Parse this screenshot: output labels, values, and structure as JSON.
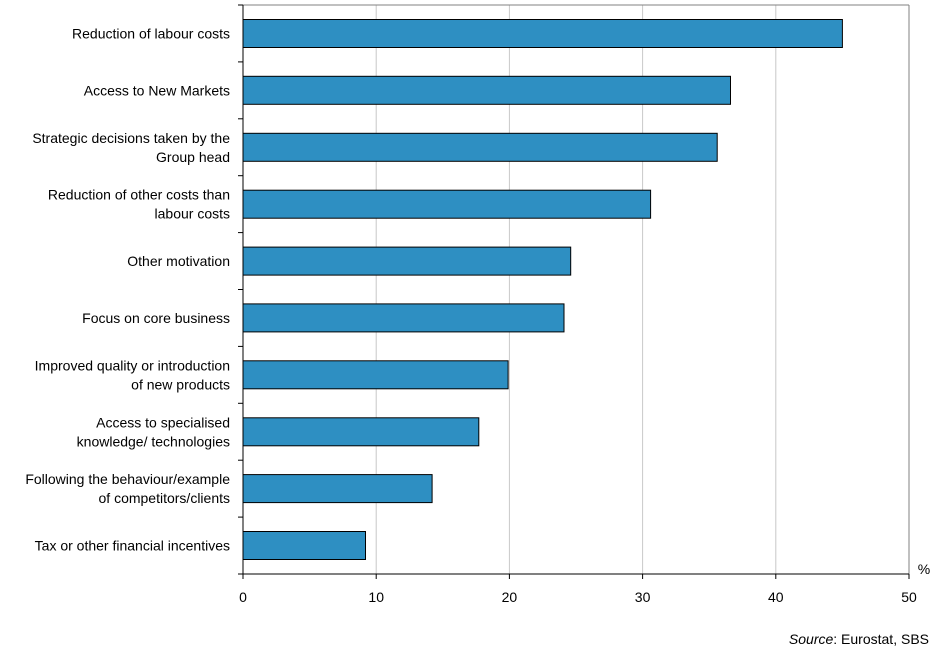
{
  "chart_data": {
    "type": "bar",
    "orientation": "horizontal",
    "categories": [
      [
        "Reduction of labour costs"
      ],
      [
        "Access to New Markets"
      ],
      [
        "Strategic decisions taken by the",
        "Group head"
      ],
      [
        "Reduction of other costs than",
        "labour costs"
      ],
      [
        "Other motivation"
      ],
      [
        "Focus on core business"
      ],
      [
        "Improved quality or introduction",
        "of new products"
      ],
      [
        "Access to specialised",
        "knowledge/ technologies"
      ],
      [
        "Following the behaviour/example",
        "of competitors/clients"
      ],
      [
        "Tax or other financial incentives"
      ]
    ],
    "values": [
      45.0,
      36.6,
      35.6,
      30.6,
      24.6,
      24.1,
      19.9,
      17.7,
      14.2,
      9.2
    ],
    "xlim": [
      0,
      50
    ],
    "xticks": [
      0,
      10,
      20,
      30,
      40,
      50
    ],
    "xunit": "%",
    "grid": true,
    "bar_color": "#2e8fc2"
  },
  "source": {
    "label": "Source",
    "text": ": Eurostat, SBS"
  }
}
